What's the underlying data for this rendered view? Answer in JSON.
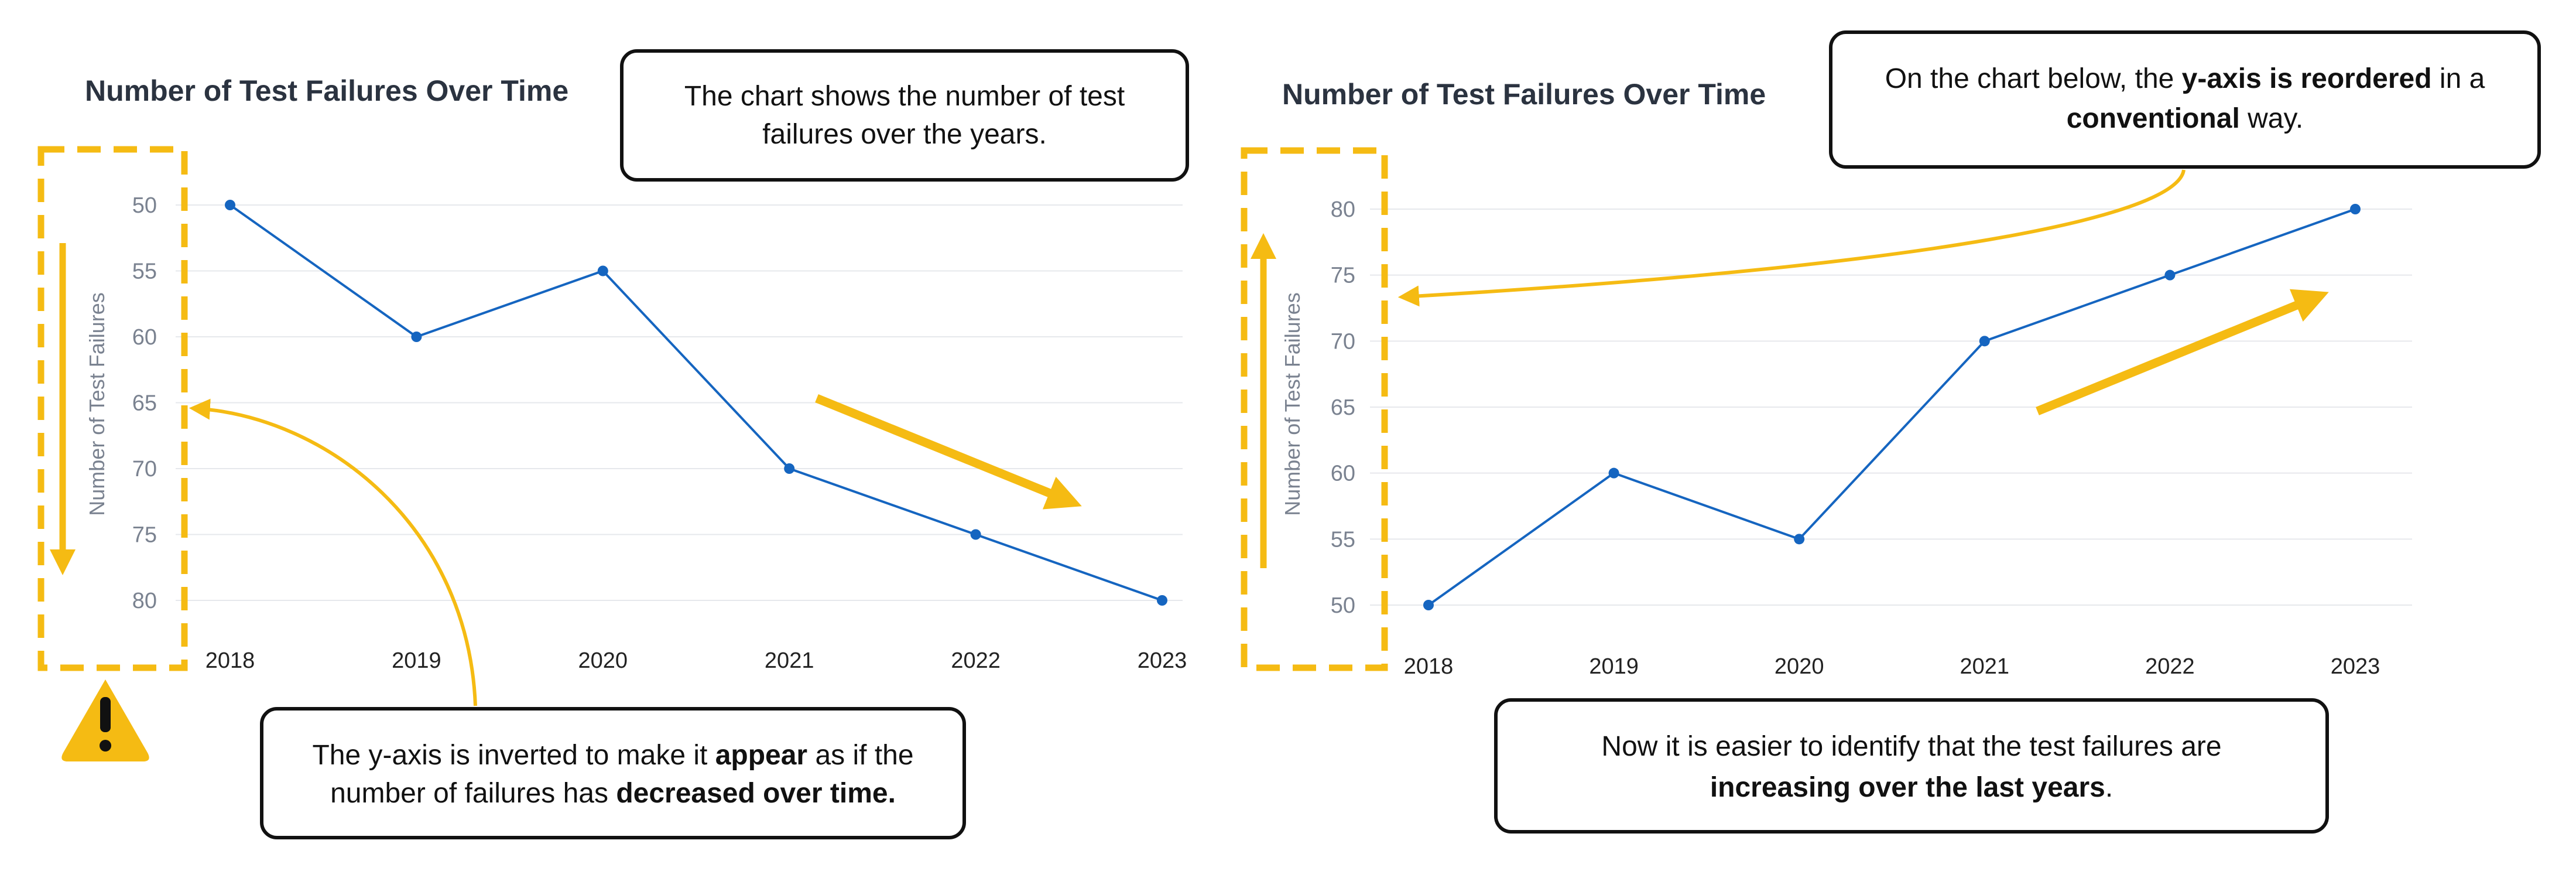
{
  "colors": {
    "series": "#1565c0",
    "highlight": "#f5bb13",
    "grid": "#e6e8ec",
    "text": "#2b3340"
  },
  "icons": [
    "warning-icon",
    "arrow-up-icon",
    "arrow-down-icon",
    "trend-down-arrow-icon",
    "trend-up-arrow-icon"
  ],
  "chart_data": [
    {
      "type": "line",
      "title": "Number of Test Failures Over Time",
      "xlabel": "",
      "ylabel": "Number of Test Failures",
      "categories": [
        "2018",
        "2019",
        "2020",
        "2021",
        "2022",
        "2023"
      ],
      "series": [
        {
          "values": [
            50,
            60,
            55,
            70,
            75,
            80
          ]
        }
      ],
      "yticks": [
        "50",
        "55",
        "60",
        "65",
        "70",
        "75",
        "80"
      ],
      "ylim": [
        50,
        80
      ],
      "y_inverted": true,
      "grid": true,
      "legend": "none"
    },
    {
      "type": "line",
      "title": "Number of Test Failures Over Time",
      "xlabel": "",
      "ylabel": "Number of Test Failures",
      "categories": [
        "2018",
        "2019",
        "2020",
        "2021",
        "2022",
        "2023"
      ],
      "series": [
        {
          "values": [
            50,
            60,
            55,
            70,
            75,
            80
          ]
        }
      ],
      "yticks": [
        "50",
        "55",
        "60",
        "65",
        "70",
        "75",
        "80"
      ],
      "ylim": [
        50,
        80
      ],
      "y_inverted": false,
      "grid": true,
      "legend": "none"
    }
  ],
  "annotations": {
    "left_top": {
      "line1": "The chart shows the number of test",
      "line2": "failures over the years."
    },
    "left_bottom": {
      "l1a": "The y-axis is inverted to make it ",
      "l1b": "appear",
      "l1c": " as if the",
      "l2a": "number of failures has ",
      "l2b": "decreased over time."
    },
    "right_top": {
      "l1a": "On the chart below, the ",
      "l1b": "y-axis is reordered",
      "l1c": " in a",
      "l2a": "conventional",
      "l2b": " way."
    },
    "right_bottom": {
      "l1": "Now it is easier to identify that the test failures are",
      "l2a": "increasing over the last years",
      "l2b": "."
    }
  }
}
